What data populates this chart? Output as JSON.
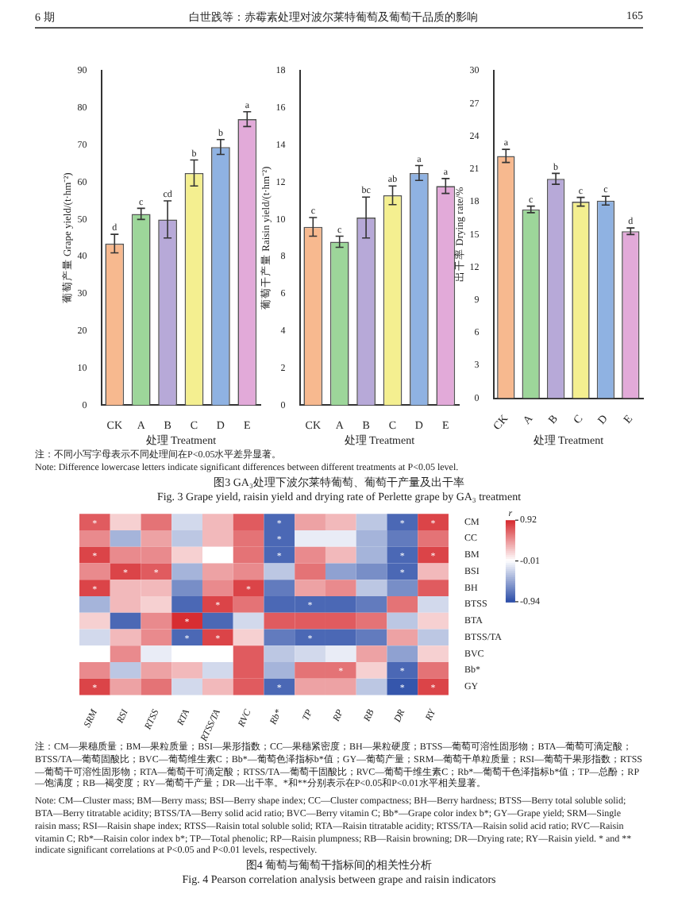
{
  "chart_data": [
    {
      "type": "bar",
      "categories": [
        "CK",
        "A",
        "B",
        "C",
        "D",
        "E"
      ],
      "values": [
        43.5,
        51.5,
        50,
        62.5,
        69.5,
        77
      ],
      "errors": [
        2.5,
        1.5,
        5,
        3.5,
        2,
        2
      ],
      "colors": [
        "#f7b98f",
        "#9dd69a",
        "#b7a9d8",
        "#f4ef90",
        "#8fb2e2",
        "#e2aad9"
      ],
      "xlabel": "处理 Treatment",
      "ylabel": "葡萄产量 Grape yield/(t·hm⁻²)",
      "ylim": [
        0,
        90
      ],
      "yticks": [
        0,
        10,
        20,
        30,
        40,
        50,
        60,
        70,
        80,
        90
      ],
      "annotations": [
        "6 期",
        "白世践等：赤霉素处理对波尔莱特葡萄及葡萄干品质的影响",
        "165",
        "注：不同小写字母表示不同处理间在P<0.05水平差异显著。",
        "Note: Difference lowercase letters indicate significant differences between different treatments at P<0.05 level.",
        "图3 GA₃处理下波尔莱特葡萄、葡萄干产量及出干率",
        "Fig. 3 Grape yield, raisin yield and drying rate of Perlette grape by GA₃ treatment",
        {
          "text": "d",
          "x": "CK",
          "y": 46
        },
        {
          "text": "c",
          "x": "A",
          "y": 53
        },
        {
          "text": "cd",
          "x": "B",
          "y": 55
        },
        {
          "text": "b",
          "x": "C",
          "y": 66
        },
        {
          "text": "b",
          "x": "D",
          "y": 71.5
        },
        {
          "text": "a",
          "x": "E",
          "y": 79
        }
      ]
    },
    {
      "type": "bar",
      "categories": [
        "CK",
        "A",
        "B",
        "C",
        "D",
        "E"
      ],
      "values": [
        9.6,
        8.8,
        10.1,
        11.3,
        12.5,
        11.8
      ],
      "errors": [
        0.5,
        0.3,
        1.1,
        0.5,
        0.4,
        0.4
      ],
      "colors": [
        "#f7b98f",
        "#9dd69a",
        "#b7a9d8",
        "#f4ef90",
        "#8fb2e2",
        "#e2aad9"
      ],
      "xlabel": "处理 Treatment",
      "ylabel": "葡萄干产量 Raisin yield/(t·hm⁻²)",
      "ylim": [
        0,
        18
      ],
      "yticks": [
        0,
        2,
        4,
        6,
        8,
        10,
        12,
        14,
        16,
        18
      ],
      "annotations": [
        {
          "text": "c",
          "x": "CK",
          "y": 10.1
        },
        {
          "text": "c",
          "x": "A",
          "y": 9.1
        },
        {
          "text": "bc",
          "x": "B",
          "y": 11.2
        },
        {
          "text": "ab",
          "x": "C",
          "y": 11.8
        },
        {
          "text": "a",
          "x": "D",
          "y": 12.9
        },
        {
          "text": "a",
          "x": "E",
          "y": 12.2
        }
      ]
    },
    {
      "type": "bar",
      "categories": [
        "CK",
        "A",
        "B",
        "C",
        "D",
        "E"
      ],
      "values": [
        22.2,
        17.3,
        20.1,
        18,
        18.1,
        15.3
      ],
      "errors": [
        0.6,
        0.3,
        0.5,
        0.4,
        0.4,
        0.3
      ],
      "colors": [
        "#f7b98f",
        "#9dd69a",
        "#b7a9d8",
        "#f4ef90",
        "#8fb2e2",
        "#e2aad9"
      ],
      "xlabel": "处理 Treatment",
      "ylabel": "出干率 Drying rate/%",
      "ylim": [
        0,
        30
      ],
      "yticks": [
        0,
        3,
        6,
        9,
        12,
        15,
        18,
        21,
        24,
        27,
        30
      ],
      "annotations": [
        {
          "text": "a",
          "x": "CK",
          "y": 22.8
        },
        {
          "text": "c",
          "x": "A",
          "y": 17.6
        },
        {
          "text": "b",
          "x": "B",
          "y": 20.6
        },
        {
          "text": "c",
          "x": "C",
          "y": 18.4
        },
        {
          "text": "c",
          "x": "D",
          "y": 18.5
        },
        {
          "text": "d",
          "x": "E",
          "y": 15.6
        }
      ]
    },
    {
      "type": "heatmap",
      "categories": [
        "SRM",
        "RSI",
        "RTSS",
        "RTA",
        "RTSS/TA",
        "RVC",
        "Rb*",
        "TP",
        "RP",
        "RB",
        "DR",
        "RY"
      ],
      "y_categories": [
        "CM",
        "CC",
        "BM",
        "BSI",
        "BH",
        "BTSS",
        "BTA",
        "BTSS/TA",
        "BVC",
        "Bb*",
        "GY"
      ],
      "cells": [
        [
          0.7,
          0.2,
          0.6,
          -0.2,
          0.3,
          0.7,
          -0.8,
          0.4,
          0.3,
          -0.3,
          -0.8,
          0.8
        ],
        [
          0.5,
          -0.4,
          0.4,
          -0.3,
          0.3,
          0.6,
          -0.8,
          -0.1,
          -0.1,
          -0.4,
          -0.7,
          0.6
        ],
        [
          0.8,
          0.5,
          0.5,
          0.2,
          0,
          0.6,
          -0.8,
          0.5,
          0.3,
          -0.4,
          -0.8,
          0.8
        ],
        [
          0.5,
          0.8,
          0.7,
          -0.4,
          0.4,
          0.5,
          -0.3,
          0.6,
          -0.5,
          -0.6,
          -0.8,
          0.3
        ],
        [
          0.8,
          0.3,
          0.3,
          -0.6,
          0.5,
          0.8,
          -0.7,
          0.4,
          0.5,
          -0.3,
          -0.6,
          0.7
        ],
        [
          -0.4,
          0.3,
          0.2,
          -0.8,
          0.8,
          0.6,
          -0.8,
          -0.8,
          -0.8,
          -0.7,
          0.6,
          -0.2
        ],
        [
          0.2,
          -0.8,
          0.5,
          0.9,
          -0.8,
          -0.2,
          0.7,
          0.7,
          0.7,
          0.6,
          -0.3,
          0.2
        ],
        [
          -0.2,
          0.3,
          0.5,
          -0.8,
          0.8,
          0.2,
          -0.7,
          -0.8,
          -0.8,
          -0.7,
          0.4,
          -0.3
        ],
        [
          0,
          0.5,
          -0.1,
          0,
          0,
          0.7,
          -0.3,
          -0.2,
          -0.1,
          0.4,
          -0.5,
          0.2
        ],
        [
          0.5,
          -0.3,
          0.4,
          0.3,
          -0.2,
          0.7,
          -0.4,
          0.6,
          0.6,
          0.2,
          -0.8,
          0.6
        ],
        [
          0.8,
          0.4,
          0.6,
          -0.2,
          0.3,
          0.7,
          -0.8,
          0.4,
          0.4,
          -0.3,
          -0.9,
          0.8
        ]
      ],
      "cell_labels": [
        [
          "*",
          null,
          null,
          null,
          null,
          null,
          "*",
          null,
          null,
          null,
          "*",
          "*"
        ],
        [
          null,
          null,
          null,
          null,
          null,
          null,
          "*",
          null,
          null,
          null,
          null,
          null
        ],
        [
          "*",
          null,
          null,
          null,
          null,
          null,
          "*",
          null,
          null,
          null,
          "*",
          "*"
        ],
        [
          null,
          "*",
          "*",
          null,
          null,
          null,
          null,
          null,
          null,
          null,
          "*",
          null
        ],
        [
          "*",
          null,
          null,
          null,
          null,
          "*",
          null,
          null,
          null,
          null,
          null,
          null
        ],
        [
          null,
          null,
          null,
          null,
          "*",
          null,
          null,
          "*",
          null,
          null,
          null,
          null
        ],
        [
          null,
          null,
          null,
          "*",
          null,
          null,
          null,
          null,
          null,
          null,
          null,
          null
        ],
        [
          null,
          null,
          null,
          "*",
          "*",
          null,
          null,
          "*",
          null,
          null,
          null,
          null
        ],
        [
          null,
          null,
          null,
          null,
          null,
          null,
          null,
          null,
          null,
          null,
          null,
          null
        ],
        [
          null,
          null,
          null,
          null,
          null,
          null,
          null,
          null,
          "*",
          null,
          "*",
          null
        ],
        [
          "*",
          null,
          null,
          null,
          null,
          null,
          "*",
          null,
          null,
          null,
          "*",
          "*"
        ]
      ],
      "clabel": "r",
      "clim": [
        -0.94,
        0.92
      ],
      "cticks": [
        0.92,
        -0.01,
        -0.94
      ],
      "annotations": [
        "注：CM—果穗质量；BM—果粒质量；BSI—果形指数；CC—果穗紧密度；BH—果粒硬度；BTSS—葡萄可溶性固形物；BTA—葡萄可滴定酸；BTSS/TA—葡萄固酸比；BVC—葡萄维生素C；Bb*—葡萄色泽指标b*值；GY—葡萄产量；SRM—葡萄干单粒质量；RSI—葡萄干果形指数；RTSS—葡萄干可溶性固形物；RTA—葡萄干可滴定酸；RTSS/TA—葡萄干固酸比；RVC—葡萄干维生素C；Rb*—葡萄干色泽指标b*值；TP—总酚；RP—饱满度；RB—褐变度；RY—葡萄干产量；DR—出干率。*和**分别表示在P<0.05和P<0.01水平相关显著。",
        "Note: CM—Cluster mass; BM—Berry mass; BSI—Berry shape index; CC—Cluster compactness; BH—Berry hardness; BTSS—Berry total soluble solid; BTA—Berry titratable acidity; BTSS/TA—Berry solid acid ratio; BVC—Berry vitamin C; Bb*—Grape color index b*; GY—Grape yield; SRM—Single raisin mass; RSI—Raisin shape index; RTSS—Raisin total soluble solid; RTA—Raisin titratable acidity; RTSS/TA—Raisin solid acid ratio; RVC—Raisin vitamin C; Rb*—Raisin color index b*; TP—Total phenolic; RP—Raisin plumpness; RB—Raisin browning; DR—Drying rate; RY—Raisin yield. * and ** indicate significant correlations at P<0.05 and P<0.01 levels, respectively.",
        "图4 葡萄与葡萄干指标间的相关性分析",
        "Fig. 4 Pearson correlation analysis between grape and raisin indicators"
      ]
    }
  ]
}
